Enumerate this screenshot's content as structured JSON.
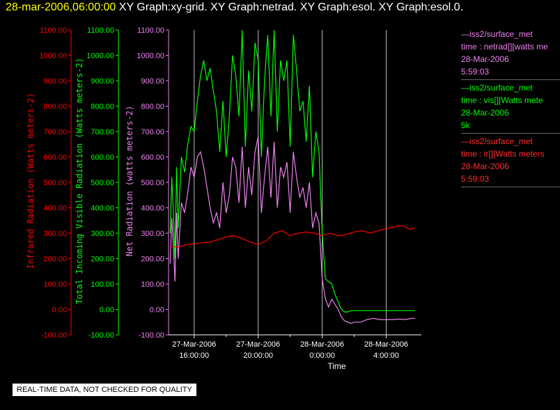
{
  "header": {
    "timestamp": "28-mar-2006,06:00:00",
    "tabs": [
      "XY Graph:xy-grid.",
      "XY Graph:netrad.",
      "XY Graph:esol.",
      "XY Graph:esol.0."
    ]
  },
  "legend": [
    {
      "source": "—iss2/surface_met",
      "desc": "time : netrad[][watts me",
      "date": "28-Mar-2006",
      "time": "5:59:03",
      "color": "#ee82ee"
    },
    {
      "source": "—iss2/surface_met",
      "desc": "time : vis[][Watts mete",
      "date": "28-Mar-2006",
      "time": "5k",
      "color": "#00ff00"
    },
    {
      "source": "—iss2/surface_met",
      "desc": "time : ir[][Watts meters",
      "date": "28-Mar-2006",
      "time": "5:59:03",
      "color": "#ff0000"
    }
  ],
  "notice": "REAL-TIME DATA, NOT CHECKED FOR QUALITY",
  "chart_data": {
    "type": "line",
    "xlabel": "Time",
    "x_ticks": [
      {
        "t": 16,
        "label1": "27-Mar-2006",
        "label2": "16:00:00"
      },
      {
        "t": 20,
        "label1": "27-Mar-2006",
        "label2": "20:00:00"
      },
      {
        "t": 24,
        "label1": "28-Mar-2006",
        "label2": "0:00:00"
      },
      {
        "t": 28,
        "label1": "28-Mar-2006",
        "label2": "4:00:00"
      }
    ],
    "xlim": [
      14.4,
      30.2
    ],
    "gridlines_x": [
      18,
      22,
      26
    ],
    "ylim": [
      -100,
      1100
    ],
    "y_ticks": [
      "1100.00",
      "1000.00",
      "900.00",
      "800.00",
      "700.00",
      "600.00",
      "500.00",
      "400.00",
      "300.00",
      "200.00",
      "100.00",
      "0.00",
      "-100.00"
    ],
    "axes": [
      {
        "label": "Infrared Radiation (Watts meters-2)",
        "color": "#ff0000"
      },
      {
        "label": "Total Incoming Visible Radiation (Watts meters-2)",
        "color": "#00ff00"
      },
      {
        "label": "Net Radiation (watts meters-2)",
        "color": "#ee82ee"
      }
    ],
    "series": [
      {
        "name": "vis",
        "color": "#00ff00",
        "x": [
          14.5,
          14.6,
          14.7,
          14.8,
          14.9,
          15.0,
          15.2,
          15.4,
          15.6,
          15.8,
          16.0,
          16.2,
          16.4,
          16.6,
          16.8,
          17.0,
          17.2,
          17.4,
          17.6,
          17.8,
          18.0,
          18.2,
          18.4,
          18.6,
          18.8,
          19.0,
          19.2,
          19.4,
          19.6,
          19.8,
          20.0,
          20.2,
          20.4,
          20.6,
          20.8,
          21.0,
          21.2,
          21.4,
          21.6,
          21.8,
          22.0,
          22.2,
          22.4,
          22.6,
          22.8,
          23.0,
          23.2,
          23.4,
          23.6,
          23.8,
          24.0,
          24.2,
          24.4,
          24.6,
          24.8,
          25.0,
          25.2,
          25.4,
          25.6,
          25.8,
          26.0,
          26.4,
          26.8,
          27.2,
          27.6,
          28.0,
          28.4,
          28.8,
          29.2,
          29.6,
          29.8
        ],
        "y": [
          300,
          520,
          380,
          200,
          560,
          320,
          600,
          540,
          650,
          720,
          700,
          820,
          920,
          980,
          900,
          950,
          860,
          780,
          620,
          820,
          600,
          760,
          1000,
          920,
          760,
          1100,
          640,
          940,
          780,
          1050,
          980,
          600,
          900,
          1080,
          760,
          1100,
          700,
          980,
          900,
          980,
          640,
          1080,
          940,
          780,
          820,
          660,
          880,
          520,
          700,
          620,
          300,
          120,
          110,
          100,
          60,
          30,
          0,
          -10,
          -10,
          -5,
          -5,
          -5,
          -5,
          -5,
          -5,
          -5,
          -5,
          -5,
          -5,
          -5,
          -5
        ]
      },
      {
        "name": "netrad",
        "color": "#ee82ee",
        "x": [
          14.5,
          14.6,
          14.7,
          14.8,
          14.9,
          15.0,
          15.2,
          15.4,
          15.6,
          15.8,
          16.0,
          16.2,
          16.4,
          16.6,
          16.8,
          17.0,
          17.2,
          17.4,
          17.6,
          17.8,
          18.0,
          18.2,
          18.4,
          18.6,
          18.8,
          19.0,
          19.2,
          19.4,
          19.6,
          19.8,
          20.0,
          20.2,
          20.4,
          20.6,
          20.8,
          21.0,
          21.2,
          21.4,
          21.6,
          21.8,
          22.0,
          22.2,
          22.4,
          22.6,
          22.8,
          23.0,
          23.2,
          23.4,
          23.6,
          23.8,
          24.0,
          24.2,
          24.4,
          24.6,
          24.8,
          25.0,
          25.2,
          25.4,
          25.6,
          25.8,
          26.0,
          26.4,
          26.8,
          27.2,
          27.6,
          28.0,
          28.4,
          28.8,
          29.2,
          29.6,
          29.8
        ],
        "y": [
          180,
          360,
          250,
          110,
          380,
          200,
          420,
          380,
          460,
          560,
          520,
          600,
          620,
          560,
          480,
          400,
          340,
          380,
          320,
          500,
          380,
          450,
          600,
          560,
          420,
          640,
          400,
          560,
          450,
          620,
          680,
          380,
          520,
          640,
          440,
          660,
          400,
          560,
          520,
          580,
          380,
          620,
          520,
          440,
          480,
          400,
          500,
          320,
          380,
          340,
          120,
          40,
          10,
          40,
          20,
          0,
          -30,
          -45,
          -50,
          -55,
          -50,
          -50,
          -40,
          -35,
          -40,
          -40,
          -40,
          -38,
          -40,
          -35,
          -35
        ]
      },
      {
        "name": "ir",
        "color": "#ff0000",
        "x": [
          14.5,
          15.0,
          15.5,
          16.0,
          16.5,
          17.0,
          17.5,
          18.0,
          18.5,
          19.0,
          19.5,
          20.0,
          20.5,
          21.0,
          21.5,
          22.0,
          22.5,
          23.0,
          23.5,
          24.0,
          24.5,
          25.0,
          25.5,
          26.0,
          26.5,
          27.0,
          27.5,
          28.0,
          28.5,
          29.0,
          29.5,
          29.8
        ],
        "y": [
          250,
          245,
          255,
          258,
          262,
          265,
          275,
          285,
          290,
          280,
          265,
          255,
          270,
          300,
          310,
          290,
          300,
          305,
          300,
          290,
          300,
          290,
          295,
          305,
          310,
          300,
          310,
          318,
          325,
          330,
          315,
          320
        ]
      }
    ]
  }
}
